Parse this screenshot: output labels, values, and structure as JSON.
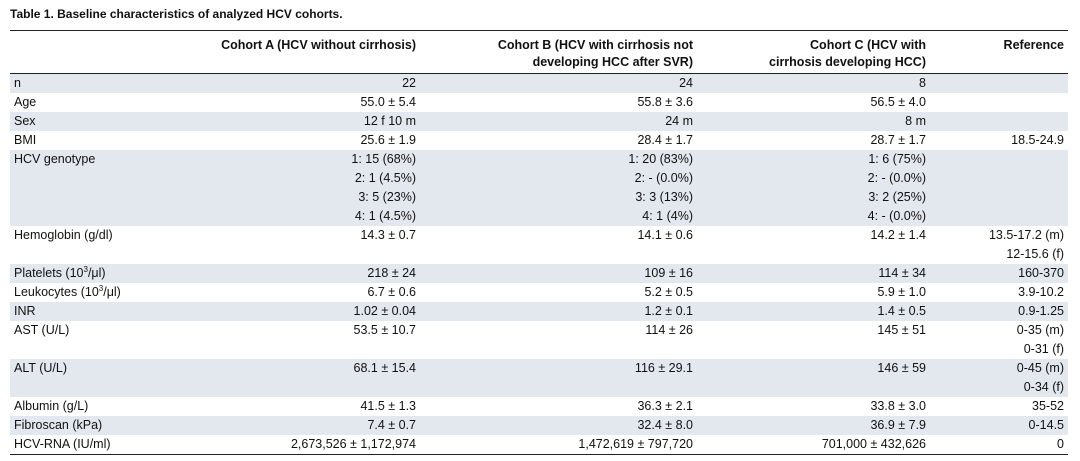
{
  "title": "Table 1.  Baseline characteristics of analyzed HCV cohorts.",
  "table": {
    "header": [
      [
        "Cohort A (HCV without cirrhosis)"
      ],
      [
        "Cohort B (HCV with cirrhosis not",
        "developing HCC after SVR)"
      ],
      [
        "Cohort C (HCV with",
        "cirrhosis developing HCC)"
      ],
      [
        "Reference"
      ]
    ],
    "rows": [
      {
        "label": "n",
        "cells": [
          [
            "22"
          ],
          [
            "24"
          ],
          [
            "8"
          ],
          []
        ]
      },
      {
        "label": "Age",
        "cells": [
          [
            "55.0 ± 5.4"
          ],
          [
            "55.8 ± 3.6"
          ],
          [
            "56.5 ± 4.0"
          ],
          []
        ]
      },
      {
        "label": "Sex",
        "cells": [
          [
            "12 f 10 m"
          ],
          [
            "24 m"
          ],
          [
            "8 m"
          ],
          []
        ]
      },
      {
        "label": "BMI",
        "cells": [
          [
            "25.6 ± 1.9"
          ],
          [
            "28.4 ± 1.7"
          ],
          [
            "28.7 ± 1.7"
          ],
          [
            "18.5-24.9"
          ]
        ]
      },
      {
        "label": "HCV genotype",
        "cells": [
          [
            "1: 15 (68%)",
            "2: 1 (4.5%)",
            "3: 5 (23%)",
            "4: 1 (4.5%)"
          ],
          [
            "1: 20 (83%)",
            "2: - (0.0%)",
            "3: 3 (13%)",
            "4: 1 (4%)"
          ],
          [
            "1: 6 (75%)",
            "2: - (0.0%)",
            "3: 2 (25%)",
            "4: - (0.0%)"
          ],
          []
        ]
      },
      {
        "label": "Hemoglobin (g/dl)",
        "cells": [
          [
            "14.3 ± 0.7"
          ],
          [
            "14.1 ± 0.6"
          ],
          [
            "14.2 ± 1.4"
          ],
          [
            "13.5-17.2 (m)",
            "12-15.6 (f)"
          ]
        ]
      },
      {
        "label": {
          "before": "Platelets (10",
          "sup": "3",
          "after": "/μl)"
        },
        "cells": [
          [
            "218 ± 24"
          ],
          [
            "109 ± 16"
          ],
          [
            "114 ± 34"
          ],
          [
            "160-370"
          ]
        ]
      },
      {
        "label": {
          "before": "Leukocytes (10",
          "sup": "3",
          "after": "/μl)"
        },
        "cells": [
          [
            "6.7 ± 0.6"
          ],
          [
            "5.2 ± 0.5"
          ],
          [
            "5.9 ± 1.0"
          ],
          [
            "3.9-10.2"
          ]
        ]
      },
      {
        "label": "INR",
        "cells": [
          [
            "1.02 ± 0.04"
          ],
          [
            "1.2 ± 0.1"
          ],
          [
            "1.4 ± 0.5"
          ],
          [
            "0.9-1.25"
          ]
        ]
      },
      {
        "label": "AST (U/L)",
        "cells": [
          [
            "53.5 ± 10.7"
          ],
          [
            "114 ± 26"
          ],
          [
            "145 ± 51"
          ],
          [
            "0-35 (m)",
            "0-31 (f)"
          ]
        ]
      },
      {
        "label": "ALT (U/L)",
        "cells": [
          [
            "68.1 ± 15.4"
          ],
          [
            "116 ± 29.1"
          ],
          [
            "146 ± 59"
          ],
          [
            "0-45 (m)",
            "0-34 (f)"
          ]
        ]
      },
      {
        "label": "Albumin (g/L)",
        "cells": [
          [
            "41.5 ± 1.3"
          ],
          [
            "36.3 ± 2.1"
          ],
          [
            "33.8 ± 3.0"
          ],
          [
            "35-52"
          ]
        ]
      },
      {
        "label": "Fibroscan (kPa)",
        "cells": [
          [
            "7.4 ± 0.7"
          ],
          [
            "32.4 ± 8.0"
          ],
          [
            "36.9 ± 7.9"
          ],
          [
            "0-14.5"
          ]
        ]
      },
      {
        "label": "HCV-RNA (IU/ml)",
        "cells": [
          [
            "2,673,526 ± 1,172,974"
          ],
          [
            "1,472,619 ± 797,720"
          ],
          [
            "701,000 ± 432,626"
          ],
          [
            "0"
          ]
        ]
      }
    ]
  }
}
